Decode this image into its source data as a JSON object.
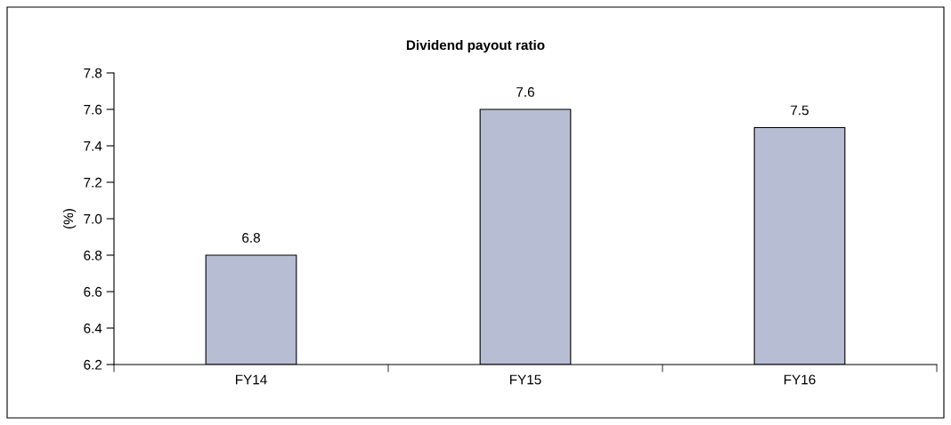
{
  "chart_data": {
    "type": "bar",
    "title": "Dividend payout ratio",
    "ylabel": "(%)",
    "categories": [
      "FY14",
      "FY15",
      "FY16"
    ],
    "values": [
      6.8,
      7.6,
      7.5
    ],
    "color": "#b7bdd3",
    "ylim": [
      6.2,
      7.8
    ],
    "yticks": [
      {
        "value": 6.2,
        "label": "6.2"
      },
      {
        "value": 6.4,
        "label": "6.4"
      },
      {
        "value": 6.6,
        "label": "6.6"
      },
      {
        "value": 6.8,
        "label": "6.8"
      },
      {
        "value": 7.0,
        "label": "7.0"
      },
      {
        "value": 7.2,
        "label": "7.2"
      },
      {
        "value": 7.4,
        "label": "7.4"
      },
      {
        "value": 7.6,
        "label": "7.6"
      },
      {
        "value": 7.8,
        "label": "7.8"
      }
    ],
    "grid": false,
    "legend": false,
    "data_labels": true
  }
}
